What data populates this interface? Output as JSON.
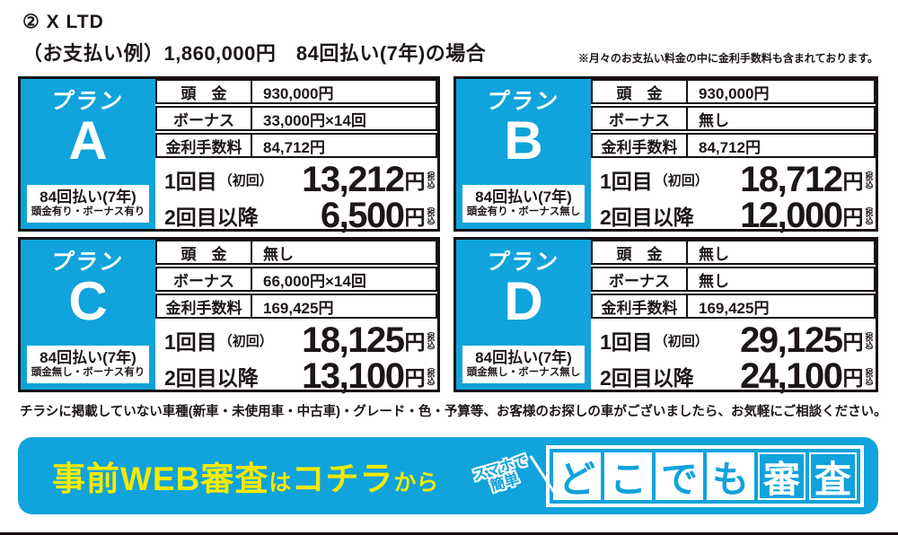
{
  "header": {
    "title": "② X LTD",
    "subtitle": "（お支払い例）1,860,000円　84回払い(7年)の場合",
    "note": "※月々のお支払い料金の中に金利手数料も含まれております。"
  },
  "labels": {
    "plan_prefix": "プラン",
    "downpayment": "頭　金",
    "bonus": "ボーナス",
    "interest": "金利手数料",
    "first_payment": "1回目",
    "first_payment_note": "（初回）",
    "subsequent": "2回目以降",
    "yen": "円",
    "tax_included": "（税込）"
  },
  "plans": [
    {
      "letter": "A",
      "terms": "84回払い(7年)",
      "terms_sub": "頭金有り・ボーナス有り",
      "downpayment": "930,000円",
      "bonus": "33,000円×14回",
      "interest": "84,712円",
      "first": "13,212",
      "subsequent": "6,500"
    },
    {
      "letter": "B",
      "terms": "84回払い(7年)",
      "terms_sub": "頭金有り・ボーナス無し",
      "downpayment": "930,000円",
      "bonus": "無し",
      "interest": "84,712円",
      "first": "18,712",
      "subsequent": "12,000"
    },
    {
      "letter": "C",
      "terms": "84回払い(7年)",
      "terms_sub": "頭金無し・ボーナス有り",
      "downpayment": "無し",
      "bonus": "66,000円×14回",
      "interest": "169,425円",
      "first": "18,125",
      "subsequent": "13,100"
    },
    {
      "letter": "D",
      "terms": "84回払い(7年)",
      "terms_sub": "頭金無し・ボーナス無し",
      "downpayment": "無し",
      "bonus": "無し",
      "interest": "169,425円",
      "first": "29,125",
      "subsequent": "24,100"
    }
  ],
  "footer_note": "チラシに掲載していない車種(新車・未使用車・中古車)・グレード・色・予算等、お客様のお探しの車がございましたら、お気軽にご相談ください。",
  "banner": {
    "cta_main1": "事前WEB審査",
    "cta_small1": "は",
    "cta_main2": "コチラ",
    "cta_small2": "から",
    "badge_line1": "スマホで",
    "badge_line2": "簡単",
    "logo_tiles": [
      "ど",
      "こ",
      "で",
      "も"
    ],
    "logo_outline": [
      "審",
      "査"
    ],
    "colors": {
      "blue": "#10a3dc",
      "yellow": "#f2ea00",
      "text": "#1d1616"
    }
  }
}
